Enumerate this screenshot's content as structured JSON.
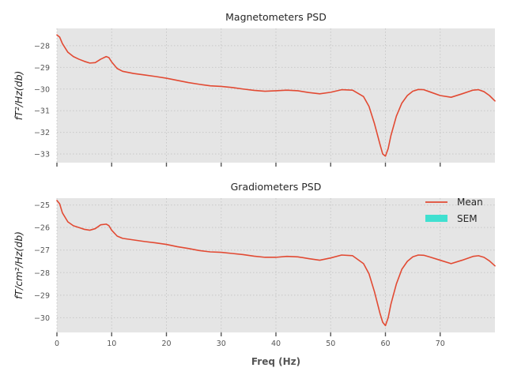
{
  "chart_data": [
    {
      "type": "line",
      "title": "Magnetometers PSD",
      "xlabel": "",
      "ylabel": "fT²/Hz(db)",
      "xlim": [
        0,
        80
      ],
      "ylim": [
        -33.4,
        -27.2
      ],
      "xticks": [
        0,
        10,
        20,
        30,
        40,
        50,
        60,
        70
      ],
      "xtick_labels_visible": false,
      "yticks": [
        -33,
        -32,
        -31,
        -30,
        -29,
        -28
      ],
      "ytick_labels": [
        "−33",
        "−32",
        "−31",
        "−30",
        "−29",
        "−28"
      ],
      "grid": true,
      "line_color": "#E24A33",
      "series": [
        {
          "name": "Mean",
          "x": [
            0,
            0.5,
            1,
            2,
            3,
            4,
            5,
            6,
            7,
            8,
            9,
            9.5,
            10,
            11,
            12,
            14,
            16,
            18,
            20,
            22,
            24,
            26,
            28,
            30,
            32,
            34,
            36,
            38,
            40,
            42,
            44,
            46,
            48,
            50,
            52,
            54,
            56,
            57,
            58,
            59,
            59.5,
            60,
            60.5,
            61,
            62,
            63,
            64,
            65,
            66,
            67,
            68,
            70,
            72,
            74,
            76,
            77,
            78,
            79,
            80
          ],
          "y": [
            -27.5,
            -27.6,
            -27.9,
            -28.3,
            -28.5,
            -28.62,
            -28.72,
            -28.8,
            -28.78,
            -28.62,
            -28.5,
            -28.55,
            -28.75,
            -29.05,
            -29.18,
            -29.28,
            -29.35,
            -29.42,
            -29.5,
            -29.6,
            -29.7,
            -29.78,
            -29.85,
            -29.88,
            -29.93,
            -30.0,
            -30.06,
            -30.1,
            -30.08,
            -30.05,
            -30.08,
            -30.16,
            -30.22,
            -30.15,
            -30.03,
            -30.05,
            -30.35,
            -30.8,
            -31.6,
            -32.55,
            -33.0,
            -33.1,
            -32.75,
            -32.15,
            -31.25,
            -30.65,
            -30.3,
            -30.1,
            -30.02,
            -30.03,
            -30.12,
            -30.3,
            -30.38,
            -30.22,
            -30.05,
            -30.03,
            -30.12,
            -30.3,
            -30.55
          ]
        }
      ]
    },
    {
      "type": "line",
      "title": "Gradiometers PSD",
      "xlabel": "Freq (Hz)",
      "ylabel": "fT/cm²/Hz(db)",
      "xlim": [
        0,
        80
      ],
      "ylim": [
        -30.65,
        -24.7
      ],
      "xticks": [
        0,
        10,
        20,
        30,
        40,
        50,
        60,
        70
      ],
      "xtick_labels": [
        "0",
        "10",
        "20",
        "30",
        "40",
        "50",
        "60",
        "70"
      ],
      "yticks": [
        -30,
        -29,
        -28,
        -27,
        -26,
        -25
      ],
      "ytick_labels": [
        "−30",
        "−29",
        "−28",
        "−27",
        "−26",
        "−25"
      ],
      "grid": true,
      "line_color": "#E24A33",
      "legend": {
        "position": "top-right",
        "entries": [
          {
            "label": "Mean",
            "kind": "line",
            "color": "#E24A33"
          },
          {
            "label": "SEM",
            "kind": "patch",
            "color": "#40E0D0"
          }
        ]
      },
      "series": [
        {
          "name": "Mean",
          "x": [
            0,
            0.5,
            1,
            2,
            3,
            4,
            5,
            6,
            7,
            8,
            9,
            9.5,
            10,
            11,
            12,
            14,
            16,
            18,
            20,
            22,
            24,
            26,
            28,
            30,
            32,
            34,
            36,
            38,
            40,
            42,
            44,
            46,
            48,
            50,
            52,
            54,
            56,
            57,
            58,
            59,
            59.5,
            60,
            60.5,
            61,
            62,
            63,
            64,
            65,
            66,
            67,
            68,
            70,
            72,
            74,
            76,
            77,
            78,
            79,
            80
          ],
          "y": [
            -24.8,
            -24.95,
            -25.35,
            -25.75,
            -25.92,
            -26.0,
            -26.08,
            -26.12,
            -26.05,
            -25.88,
            -25.85,
            -25.92,
            -26.12,
            -26.38,
            -26.48,
            -26.55,
            -26.62,
            -26.68,
            -26.75,
            -26.85,
            -26.93,
            -27.02,
            -27.08,
            -27.1,
            -27.15,
            -27.2,
            -27.27,
            -27.32,
            -27.32,
            -27.28,
            -27.3,
            -27.38,
            -27.45,
            -27.35,
            -27.22,
            -27.25,
            -27.6,
            -28.05,
            -28.85,
            -29.8,
            -30.2,
            -30.35,
            -30.0,
            -29.4,
            -28.5,
            -27.85,
            -27.5,
            -27.3,
            -27.22,
            -27.23,
            -27.3,
            -27.45,
            -27.6,
            -27.45,
            -27.28,
            -27.25,
            -27.32,
            -27.48,
            -27.7
          ]
        }
      ]
    }
  ]
}
